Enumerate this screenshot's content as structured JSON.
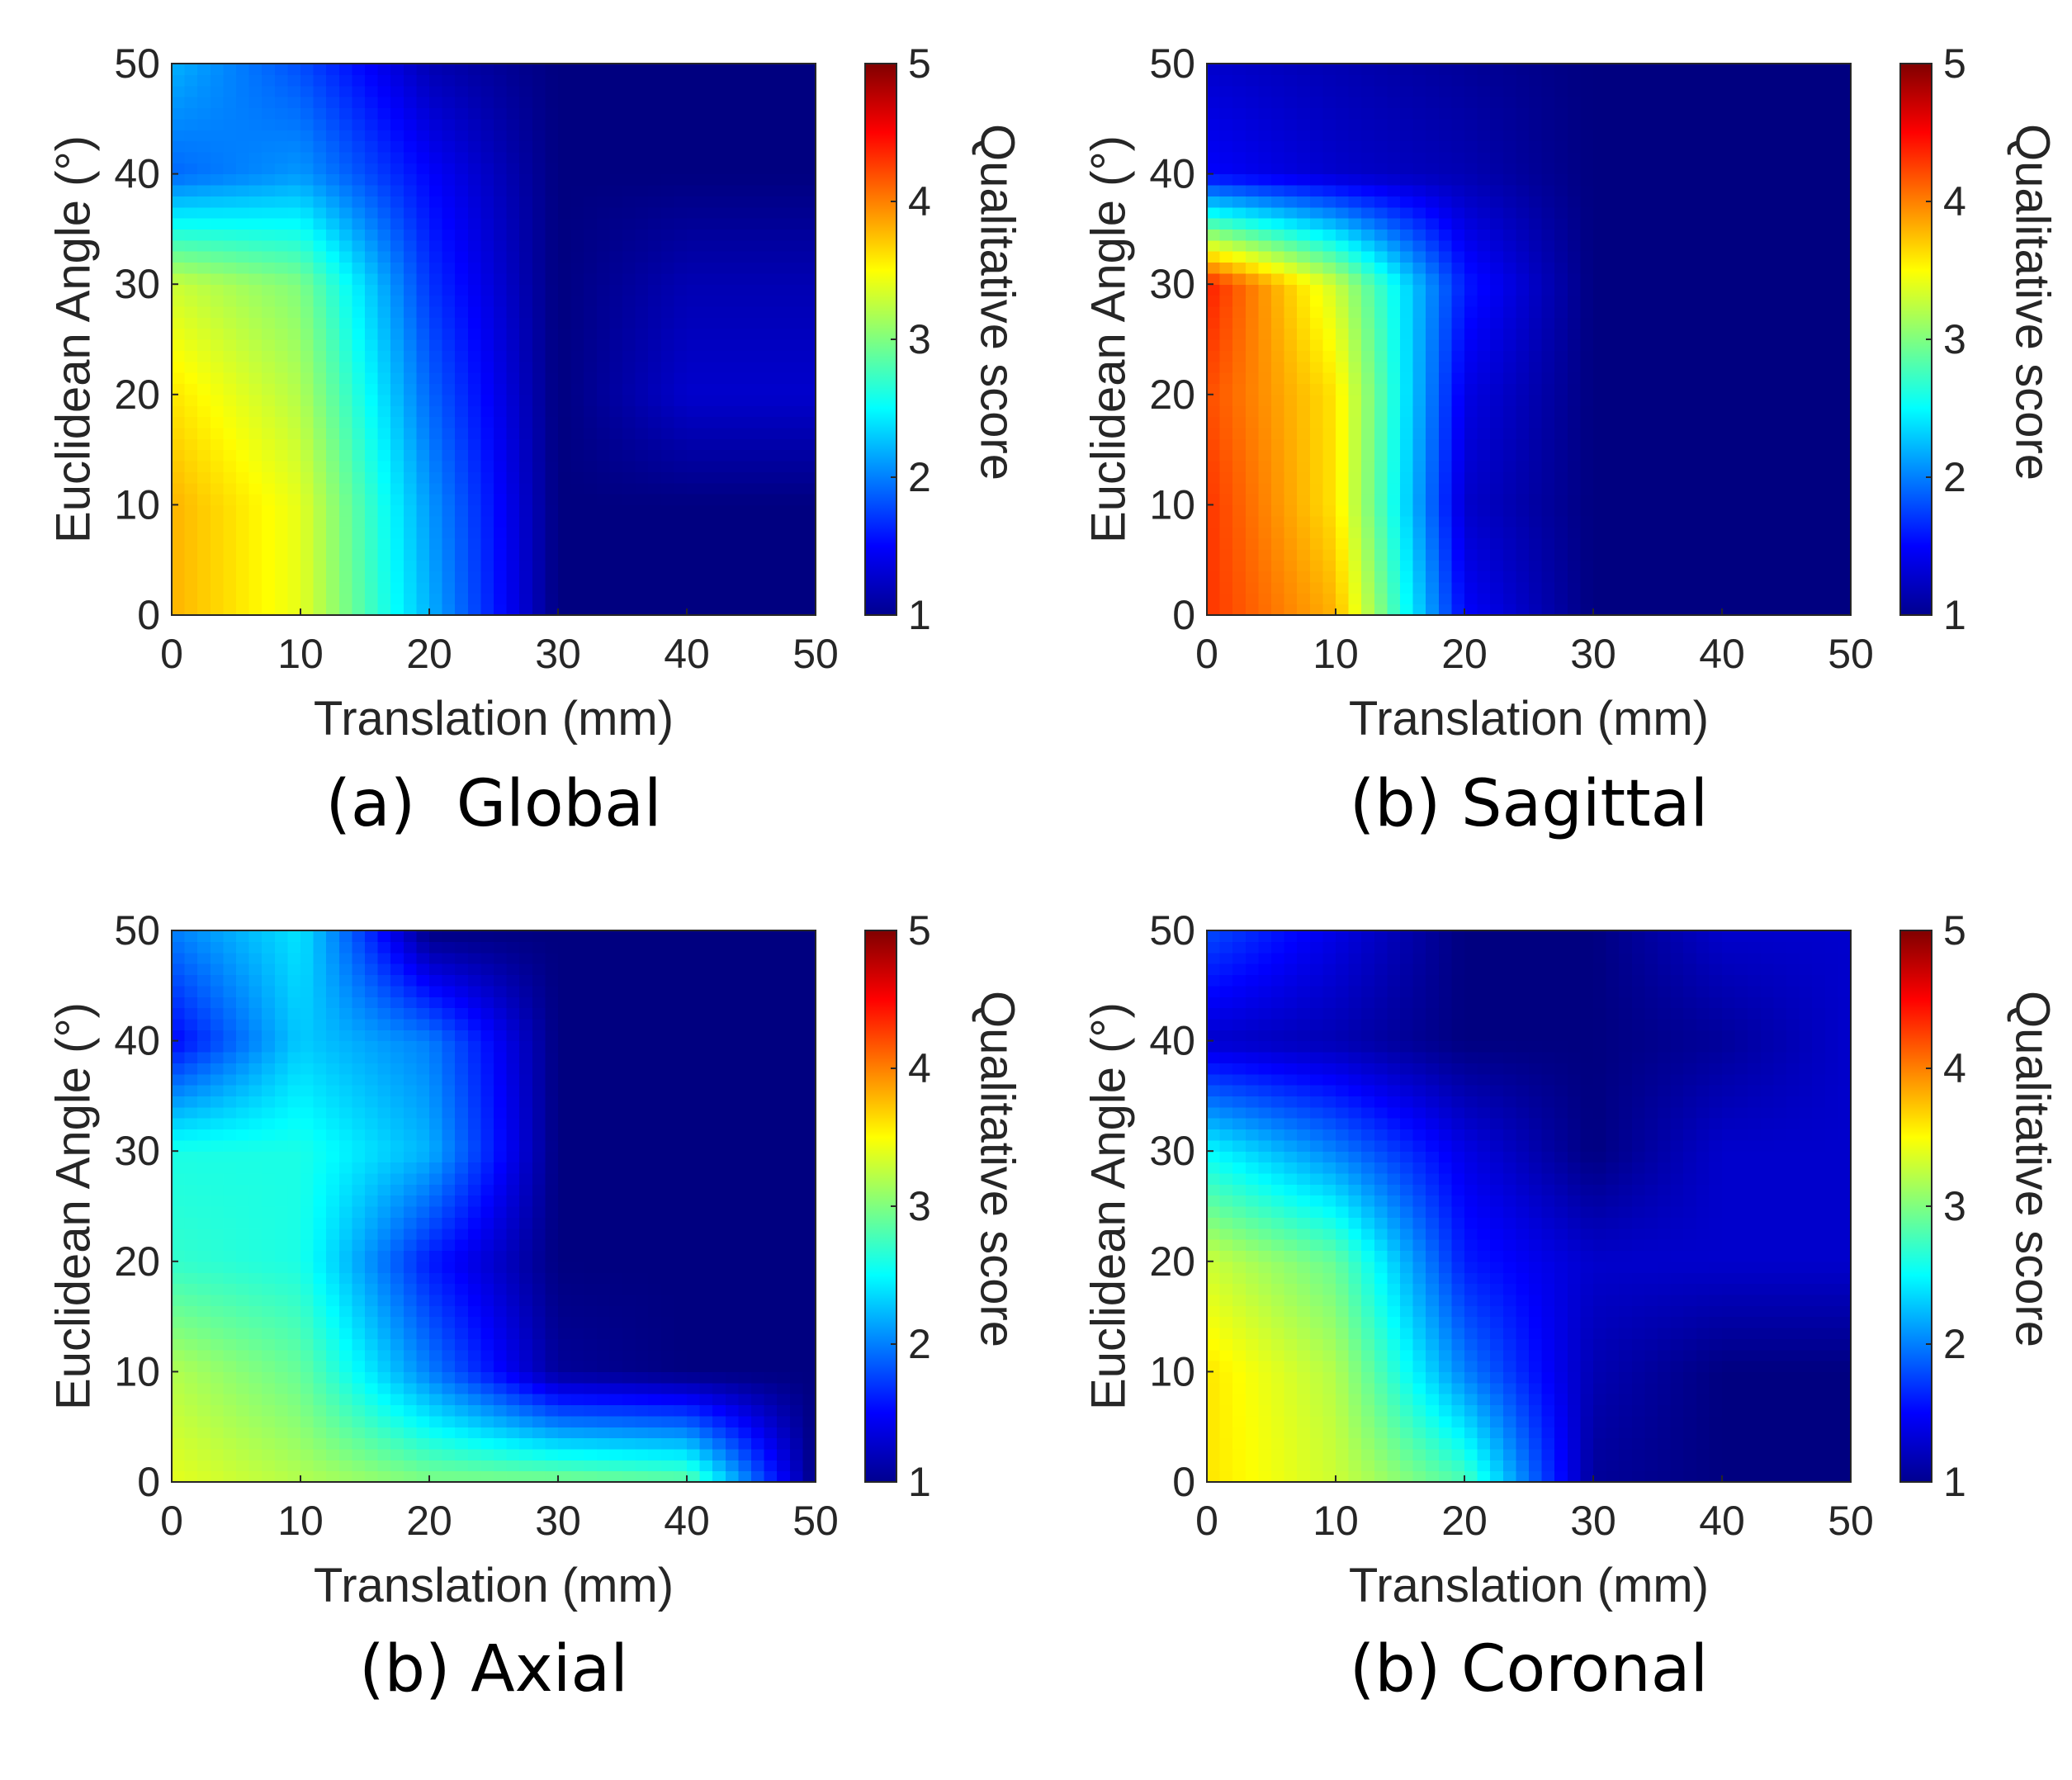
{
  "chart_data": [
    {
      "type": "heatmap",
      "panel": "global",
      "caption": "(a)  Global",
      "xlabel": "Translation (mm)",
      "ylabel": "Euclidean Angle (°)",
      "xlim": [
        0,
        50
      ],
      "ylim": [
        0,
        50
      ],
      "x_ticks": [
        "0",
        "10",
        "20",
        "30",
        "40",
        "50"
      ],
      "y_ticks": [
        "0",
        "10",
        "20",
        "30",
        "40",
        "50"
      ],
      "colorbar": {
        "label": "Qualitative score",
        "range": [
          1,
          5
        ],
        "ticks": [
          "1",
          "2",
          "3",
          "4",
          "5"
        ]
      },
      "grid_x": [
        0,
        10,
        20,
        30,
        40,
        50
      ],
      "grid_y": [
        0,
        10,
        20,
        30,
        40,
        50
      ],
      "values": [
        [
          3.8,
          3.4,
          2.2,
          1.0,
          1.0,
          1.0
        ],
        [
          3.8,
          3.4,
          2.1,
          1.0,
          1.0,
          1.0
        ],
        [
          3.6,
          3.2,
          1.9,
          1.0,
          1.3,
          1.3
        ],
        [
          3.3,
          3.0,
          1.7,
          1.0,
          1.2,
          1.2
        ],
        [
          1.9,
          2.1,
          1.5,
          1.0,
          1.0,
          1.0
        ],
        [
          2.2,
          1.8,
          1.2,
          1.0,
          1.0,
          1.0
        ]
      ]
    },
    {
      "type": "heatmap",
      "panel": "sagittal",
      "caption": "(b) Sagittal",
      "xlabel": "Translation (mm)",
      "ylabel": "Euclidean Angle (°)",
      "xlim": [
        0,
        50
      ],
      "ylim": [
        0,
        50
      ],
      "x_ticks": [
        "0",
        "10",
        "20",
        "30",
        "40",
        "50"
      ],
      "y_ticks": [
        "0",
        "10",
        "20",
        "30",
        "40",
        "50"
      ],
      "colorbar": {
        "label": "Qualitative score",
        "range": [
          1,
          5
        ],
        "ticks": [
          "1",
          "2",
          "3",
          "4",
          "5"
        ]
      },
      "grid_x": [
        0,
        10,
        20,
        30,
        40,
        50
      ],
      "grid_y": [
        0,
        10,
        20,
        30,
        40,
        50
      ],
      "values": [
        [
          4.3,
          3.8,
          1.5,
          1.0,
          1.0,
          1.0
        ],
        [
          4.3,
          3.6,
          1.3,
          1.0,
          1.0,
          1.0
        ],
        [
          4.2,
          3.6,
          1.4,
          1.0,
          1.0,
          1.0
        ],
        [
          4.4,
          3.3,
          1.6,
          1.0,
          1.0,
          1.0
        ],
        [
          1.5,
          1.3,
          1.2,
          1.0,
          1.0,
          1.0
        ],
        [
          1.3,
          1.2,
          1.1,
          1.0,
          1.0,
          1.0
        ]
      ]
    },
    {
      "type": "heatmap",
      "panel": "axial",
      "caption": "(b) Axial",
      "xlabel": "Translation (mm)",
      "ylabel": "Euclidean Angle (°)",
      "xlim": [
        0,
        50
      ],
      "ylim": [
        0,
        50
      ],
      "x_ticks": [
        "0",
        "10",
        "20",
        "30",
        "40",
        "50"
      ],
      "y_ticks": [
        "0",
        "10",
        "20",
        "30",
        "40",
        "50"
      ],
      "colorbar": {
        "label": "Qualitative score",
        "range": [
          1,
          5
        ],
        "ticks": [
          "1",
          "2",
          "3",
          "4",
          "5"
        ]
      },
      "grid_x": [
        0,
        10,
        20,
        30,
        40,
        50
      ],
      "grid_y": [
        0,
        10,
        20,
        30,
        40,
        50
      ],
      "values": [
        [
          3.4,
          3.2,
          3.0,
          3.0,
          2.9,
          1.0
        ],
        [
          3.2,
          2.9,
          2.0,
          1.1,
          1.0,
          1.0
        ],
        [
          2.7,
          2.6,
          1.6,
          1.0,
          1.0,
          1.0
        ],
        [
          2.6,
          2.6,
          2.2,
          1.0,
          1.0,
          1.0
        ],
        [
          1.5,
          2.3,
          2.0,
          1.0,
          1.0,
          1.0
        ],
        [
          2.0,
          2.4,
          1.0,
          1.0,
          1.0,
          1.0
        ]
      ]
    },
    {
      "type": "heatmap",
      "panel": "coronal",
      "caption": "(b) Coronal",
      "xlabel": "Translation (mm)",
      "ylabel": "Euclidean Angle (°)",
      "xlim": [
        0,
        50
      ],
      "ylim": [
        0,
        50
      ],
      "x_ticks": [
        "0",
        "10",
        "20",
        "30",
        "40",
        "50"
      ],
      "y_ticks": [
        "0",
        "10",
        "20",
        "30",
        "40",
        "50"
      ],
      "colorbar": {
        "label": "Qualitative score",
        "range": [
          1,
          5
        ],
        "ticks": [
          "1",
          "2",
          "3",
          "4",
          "5"
        ]
      },
      "grid_x": [
        0,
        10,
        20,
        30,
        40,
        50
      ],
      "grid_y": [
        0,
        10,
        20,
        30,
        40,
        50
      ],
      "values": [
        [
          3.6,
          3.3,
          2.8,
          1.1,
          1.0,
          1.0
        ],
        [
          3.6,
          3.2,
          2.0,
          1.2,
          1.0,
          1.0
        ],
        [
          3.3,
          2.9,
          1.6,
          1.3,
          1.3,
          1.3
        ],
        [
          2.5,
          2.0,
          1.4,
          1.0,
          1.3,
          1.3
        ],
        [
          1.3,
          1.2,
          1.0,
          1.0,
          1.1,
          1.3
        ],
        [
          1.8,
          1.4,
          1.0,
          1.0,
          1.3,
          1.3
        ]
      ]
    }
  ]
}
